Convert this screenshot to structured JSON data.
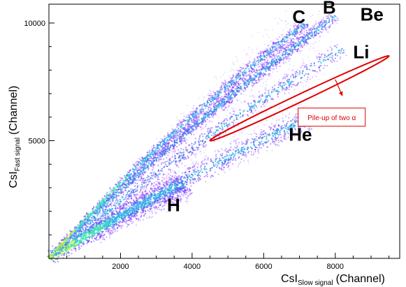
{
  "chart_data": {
    "type": "scatter",
    "title": "",
    "xlabel": {
      "main": "CsI",
      "sub": "Slow signal",
      "unit": "(Channel)"
    },
    "ylabel": {
      "main": "CsI",
      "sub": "Fast signal",
      "unit": "(Channel)"
    },
    "xlim": [
      0,
      9800
    ],
    "ylim": [
      0,
      10800
    ],
    "x_ticks": [
      2000,
      4000,
      6000,
      8000
    ],
    "y_ticks": [
      5000,
      10000
    ],
    "x_tick_labels": [
      "2000",
      "4000",
      "6000",
      "8000"
    ],
    "y_tick_labels": [
      "5000",
      "10000"
    ],
    "grid": false,
    "legend": "none",
    "colormap": [
      "#7b2cff",
      "#4a6cf0",
      "#2ab0e8",
      "#33e0b0",
      "#c8ee30"
    ],
    "series": [
      {
        "name": "H",
        "label_at": [
          3300,
          2000
        ],
        "end": [
          3800,
          3200
        ],
        "bend": 0.06,
        "width": 330,
        "spread": 0.035,
        "density": 1.0
      },
      {
        "name": "He",
        "label_at": [
          6700,
          5000
        ],
        "end": [
          7300,
          6000
        ],
        "bend": 0.07,
        "width": 260,
        "spread": 0.03,
        "density": 0.8
      },
      {
        "name": "Li",
        "label_at": [
          8500,
          8500
        ],
        "end": [
          8200,
          8900
        ],
        "bend": 0.08,
        "width": 200,
        "spread": 0.025,
        "density": 0.55
      },
      {
        "name": "Be",
        "label_at": [
          8700,
          10100
        ],
        "end": [
          7800,
          10000
        ],
        "bend": 0.08,
        "width": 170,
        "spread": 0.022,
        "density": 0.55
      },
      {
        "name": "B",
        "label_at": [
          7650,
          10400
        ],
        "end": [
          8000,
          10300
        ],
        "bend": 0.08,
        "width": 140,
        "spread": 0.02,
        "density": 0.65
      },
      {
        "name": "C",
        "label_at": [
          6800,
          10000
        ],
        "end": [
          7200,
          10000
        ],
        "bend": 0.09,
        "width": 140,
        "spread": 0.02,
        "density": 0.9
      }
    ],
    "annotation": {
      "text": "Pile-up of two α",
      "color": "#e00000",
      "ellipse_from": [
        4500,
        5000
      ],
      "ellipse_to": [
        9500,
        8600
      ],
      "arrow_from": [
        8000,
        7600
      ],
      "arrow_to": [
        8200,
        6900
      ],
      "text_anchor": [
        7900,
        6000
      ]
    }
  }
}
